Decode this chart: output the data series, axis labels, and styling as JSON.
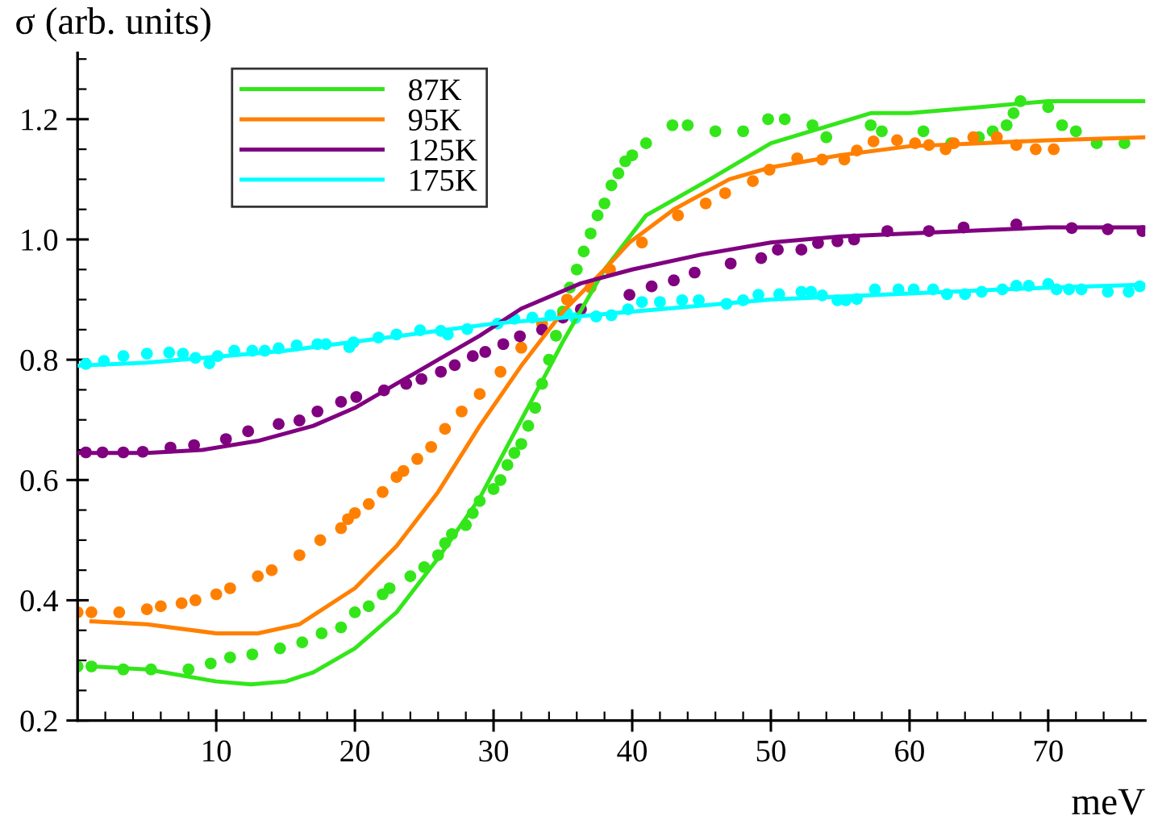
{
  "chart_data": {
    "type": "line",
    "xlabel": "meV",
    "ylabel": "σ (arb. units)",
    "xlim": [
      0,
      77
    ],
    "ylim": [
      0.2,
      1.31
    ],
    "xticks": [
      {
        "value": 2,
        "label": null
      },
      {
        "value": 4,
        "label": null
      },
      {
        "value": 6,
        "label": null
      },
      {
        "value": 8,
        "label": null
      },
      10,
      {
        "value": 12,
        "label": null
      },
      {
        "value": 14,
        "label": null
      },
      {
        "value": 16,
        "label": null
      },
      {
        "value": 18,
        "label": null
      },
      20,
      {
        "value": 22,
        "label": null
      },
      {
        "value": 24,
        "label": null
      },
      {
        "value": 26,
        "label": null
      },
      {
        "value": 28,
        "label": null
      },
      30,
      {
        "value": 32,
        "label": null
      },
      {
        "value": 34,
        "label": null
      },
      {
        "value": 36,
        "label": null
      },
      {
        "value": 38,
        "label": null
      },
      40,
      {
        "value": 42,
        "label": null
      },
      {
        "value": 44,
        "label": null
      },
      {
        "value": 46,
        "label": null
      },
      {
        "value": 48,
        "label": null
      },
      50,
      {
        "value": 52,
        "label": null
      },
      {
        "value": 54,
        "label": null
      },
      {
        "value": 56,
        "label": null
      },
      {
        "value": 58,
        "label": null
      },
      60,
      {
        "value": 62,
        "label": null
      },
      {
        "value": 64,
        "label": null
      },
      {
        "value": 66,
        "label": null
      },
      {
        "value": 68,
        "label": null
      },
      70,
      {
        "value": 72,
        "label": null
      },
      {
        "value": 74,
        "label": null
      },
      {
        "value": 76,
        "label": null
      }
    ],
    "yticks": [
      0.2,
      {
        "value": 0.25,
        "label": null
      },
      {
        "value": 0.3,
        "label": null
      },
      {
        "value": 0.35,
        "label": null
      },
      0.4,
      {
        "value": 0.45,
        "label": null
      },
      {
        "value": 0.5,
        "label": null
      },
      {
        "value": 0.55,
        "label": null
      },
      0.6,
      {
        "value": 0.65,
        "label": null
      },
      {
        "value": 0.7,
        "label": null
      },
      {
        "value": 0.75,
        "label": null
      },
      0.8,
      {
        "value": 0.85,
        "label": null
      },
      {
        "value": 0.9,
        "label": null
      },
      {
        "value": 0.95,
        "label": null
      },
      {
        "value": 1.0,
        "label": "1.0"
      },
      {
        "value": 1.05,
        "label": null
      },
      {
        "value": 1.1,
        "label": null
      },
      {
        "value": 1.15,
        "label": null
      },
      1.2,
      {
        "value": 1.25,
        "label": null
      },
      {
        "value": 1.3,
        "label": null
      }
    ],
    "legend": "top left",
    "series": [
      {
        "name": "87K",
        "color": "#33e61a",
        "x": [
          1,
          5,
          10,
          12.5,
          15,
          17,
          20,
          23,
          26,
          29,
          32,
          34,
          35,
          38,
          41,
          45.6,
          50,
          57.2,
          60,
          65,
          70,
          77
        ],
        "values": [
          0.29,
          0.285,
          0.265,
          0.26,
          0.265,
          0.28,
          0.32,
          0.38,
          0.47,
          0.57,
          0.7,
          0.786,
          0.83,
          0.95,
          1.04,
          1.1,
          1.16,
          1.21,
          1.21,
          1.22,
          1.23,
          1.23
        ]
      },
      {
        "name": "95K",
        "color": "#ff8000",
        "x": [
          1,
          5,
          10,
          13,
          16,
          20,
          23,
          26,
          29,
          32,
          35,
          38,
          39.8,
          43,
          47,
          50,
          55,
          60,
          65,
          70,
          77
        ],
        "values": [
          0.365,
          0.36,
          0.345,
          0.345,
          0.36,
          0.42,
          0.49,
          0.58,
          0.69,
          0.79,
          0.88,
          0.95,
          0.995,
          1.05,
          1.1,
          1.12,
          1.14,
          1.155,
          1.16,
          1.165,
          1.17
        ]
      },
      {
        "name": "125K",
        "color": "#800080",
        "x": [
          0,
          5,
          9,
          13,
          17,
          20,
          23,
          26,
          29,
          32,
          36.3,
          40,
          45,
          50,
          55,
          60,
          65,
          70,
          77
        ],
        "values": [
          0.645,
          0.645,
          0.65,
          0.665,
          0.69,
          0.72,
          0.76,
          0.8,
          0.84,
          0.885,
          0.927,
          0.95,
          0.975,
          0.995,
          1.005,
          1.01,
          1.015,
          1.02,
          1.02
        ]
      },
      {
        "name": "175K",
        "color": "#00ffff",
        "x": [
          0,
          5,
          10,
          15,
          20,
          25,
          30,
          35,
          40,
          45,
          50,
          55,
          60,
          65,
          70,
          77
        ],
        "values": [
          0.79,
          0.795,
          0.805,
          0.815,
          0.83,
          0.845,
          0.86,
          0.87,
          0.88,
          0.89,
          0.9,
          0.905,
          0.91,
          0.915,
          0.92,
          0.925
        ]
      },
      {
        "type": "scatter",
        "marker": "circle",
        "color": "#33e61a",
        "x": [
          0,
          1,
          3.3,
          5.3,
          8,
          9.6,
          11,
          12.6,
          14.6,
          16.2,
          17.6,
          19,
          20,
          21,
          22,
          22.5,
          24,
          25,
          26,
          26.5,
          27,
          28,
          28.5,
          29,
          30,
          30.5,
          31,
          31.5,
          32,
          32.5,
          33,
          33.5,
          34,
          34.5,
          35,
          35.5,
          36,
          36.5,
          37,
          37.5,
          38,
          38.5,
          39,
          39.5,
          40,
          41,
          42.9,
          44,
          46,
          48,
          49.8,
          51,
          53,
          54,
          57.2,
          58,
          61,
          63,
          65,
          66,
          67,
          67.5,
          68,
          70,
          71,
          72,
          73.5,
          75.5
        ],
        "values": [
          0.29,
          0.29,
          0.285,
          0.285,
          0.285,
          0.295,
          0.305,
          0.31,
          0.32,
          0.33,
          0.345,
          0.355,
          0.38,
          0.39,
          0.41,
          0.42,
          0.44,
          0.455,
          0.475,
          0.495,
          0.51,
          0.525,
          0.545,
          0.565,
          0.585,
          0.6,
          0.625,
          0.645,
          0.66,
          0.69,
          0.72,
          0.76,
          0.8,
          0.84,
          0.88,
          0.92,
          0.95,
          0.98,
          1.01,
          1.04,
          1.06,
          1.09,
          1.11,
          1.13,
          1.14,
          1.16,
          1.19,
          1.19,
          1.18,
          1.18,
          1.2,
          1.2,
          1.19,
          1.17,
          1.19,
          1.18,
          1.18,
          1.16,
          1.17,
          1.18,
          1.19,
          1.21,
          1.23,
          1.22,
          1.19,
          1.18,
          1.16,
          1.16
        ]
      },
      {
        "type": "scatter",
        "marker": "circle",
        "color": "#ff8000",
        "x": [
          0,
          1,
          3,
          5,
          6,
          7.5,
          8.5,
          10,
          11,
          13,
          14,
          16,
          17.5,
          19,
          19.5,
          20,
          21,
          22,
          23,
          23.5,
          24.5,
          25.5,
          26.5,
          27.7,
          29,
          30.5,
          32,
          33.5,
          35.3,
          37,
          38.4,
          40.7,
          43.3,
          45.3,
          46.7,
          48.7,
          49.9,
          51.9,
          53.7,
          55.3,
          56.2,
          57.4,
          59.1,
          60.4,
          61.4,
          62.6,
          63.2,
          64.6,
          66.3,
          67.7,
          69.1,
          70.4
        ],
        "values": [
          0.38,
          0.38,
          0.38,
          0.385,
          0.39,
          0.395,
          0.4,
          0.41,
          0.42,
          0.44,
          0.45,
          0.475,
          0.5,
          0.52,
          0.535,
          0.545,
          0.56,
          0.58,
          0.605,
          0.615,
          0.635,
          0.655,
          0.685,
          0.714,
          0.743,
          0.78,
          0.82,
          0.86,
          0.9,
          0.92,
          0.95,
          0.995,
          1.04,
          1.06,
          1.077,
          1.097,
          1.116,
          1.135,
          1.133,
          1.133,
          1.148,
          1.163,
          1.165,
          1.16,
          1.157,
          1.15,
          1.16,
          1.17,
          1.17,
          1.157,
          1.15,
          1.15
        ]
      },
      {
        "type": "scatter",
        "marker": "circle",
        "color": "#800080",
        "x": [
          0.6,
          1.8,
          3.3,
          4.7,
          6.7,
          8.4,
          10.7,
          12.3,
          14.5,
          16,
          17.3,
          19,
          20.1,
          22.1,
          23.7,
          24.8,
          26.2,
          27.2,
          28.5,
          29.4,
          30.7,
          31.9,
          33.5,
          35,
          36.3,
          39.8,
          41.4,
          43,
          44.5,
          47.1,
          49.3,
          50.5,
          52.2,
          53.4,
          54.8,
          56,
          58.4,
          61.4,
          63.9,
          67.7,
          71.7,
          74.3,
          76.8
        ],
        "values": [
          0.646,
          0.646,
          0.646,
          0.647,
          0.654,
          0.658,
          0.668,
          0.681,
          0.693,
          0.699,
          0.714,
          0.73,
          0.738,
          0.749,
          0.76,
          0.768,
          0.78,
          0.791,
          0.806,
          0.813,
          0.826,
          0.839,
          0.85,
          0.87,
          0.884,
          0.908,
          0.922,
          0.932,
          0.945,
          0.96,
          0.969,
          0.983,
          0.983,
          0.994,
          0.997,
          1.0,
          1.014,
          1.014,
          1.02,
          1.025,
          1.019,
          1.017,
          1.014
        ]
      },
      {
        "type": "scatter",
        "marker": "circle",
        "color": "#00ffff",
        "x": [
          0.6,
          1.9,
          3.3,
          5,
          6.6,
          7.6,
          8.5,
          9.5,
          10.1,
          11.3,
          12.6,
          13.5,
          14.5,
          15.8,
          17.3,
          17.9,
          19.6,
          19.9,
          21.7,
          23,
          24.7,
          26.2,
          26.7,
          28.1,
          30.3,
          31.5,
          32.8,
          34.1,
          35.3,
          35.9,
          37.4,
          38.5,
          39.7,
          40.7,
          42,
          43.6,
          44.8,
          46.8,
          48,
          49.1,
          50.6,
          52.2,
          52.9,
          53.7,
          54.8,
          55.4,
          56.2,
          57.5,
          59.2,
          60.3,
          61.7,
          62.7,
          64,
          65.2,
          66.7,
          67.7,
          68.6,
          70,
          70.6,
          71.5,
          72.4,
          74.3,
          75.8,
          76.6
        ],
        "values": [
          0.793,
          0.798,
          0.806,
          0.81,
          0.812,
          0.81,
          0.803,
          0.794,
          0.806,
          0.815,
          0.815,
          0.815,
          0.819,
          0.824,
          0.826,
          0.826,
          0.821,
          0.829,
          0.837,
          0.842,
          0.849,
          0.848,
          0.842,
          0.851,
          0.86,
          0.868,
          0.87,
          0.874,
          0.877,
          0.869,
          0.872,
          0.874,
          0.884,
          0.896,
          0.896,
          0.899,
          0.899,
          0.893,
          0.899,
          0.908,
          0.909,
          0.913,
          0.913,
          0.907,
          0.899,
          0.899,
          0.901,
          0.917,
          0.917,
          0.917,
          0.917,
          0.909,
          0.909,
          0.913,
          0.917,
          0.923,
          0.923,
          0.926,
          0.917,
          0.917,
          0.917,
          0.913,
          0.913,
          0.922
        ]
      }
    ]
  }
}
